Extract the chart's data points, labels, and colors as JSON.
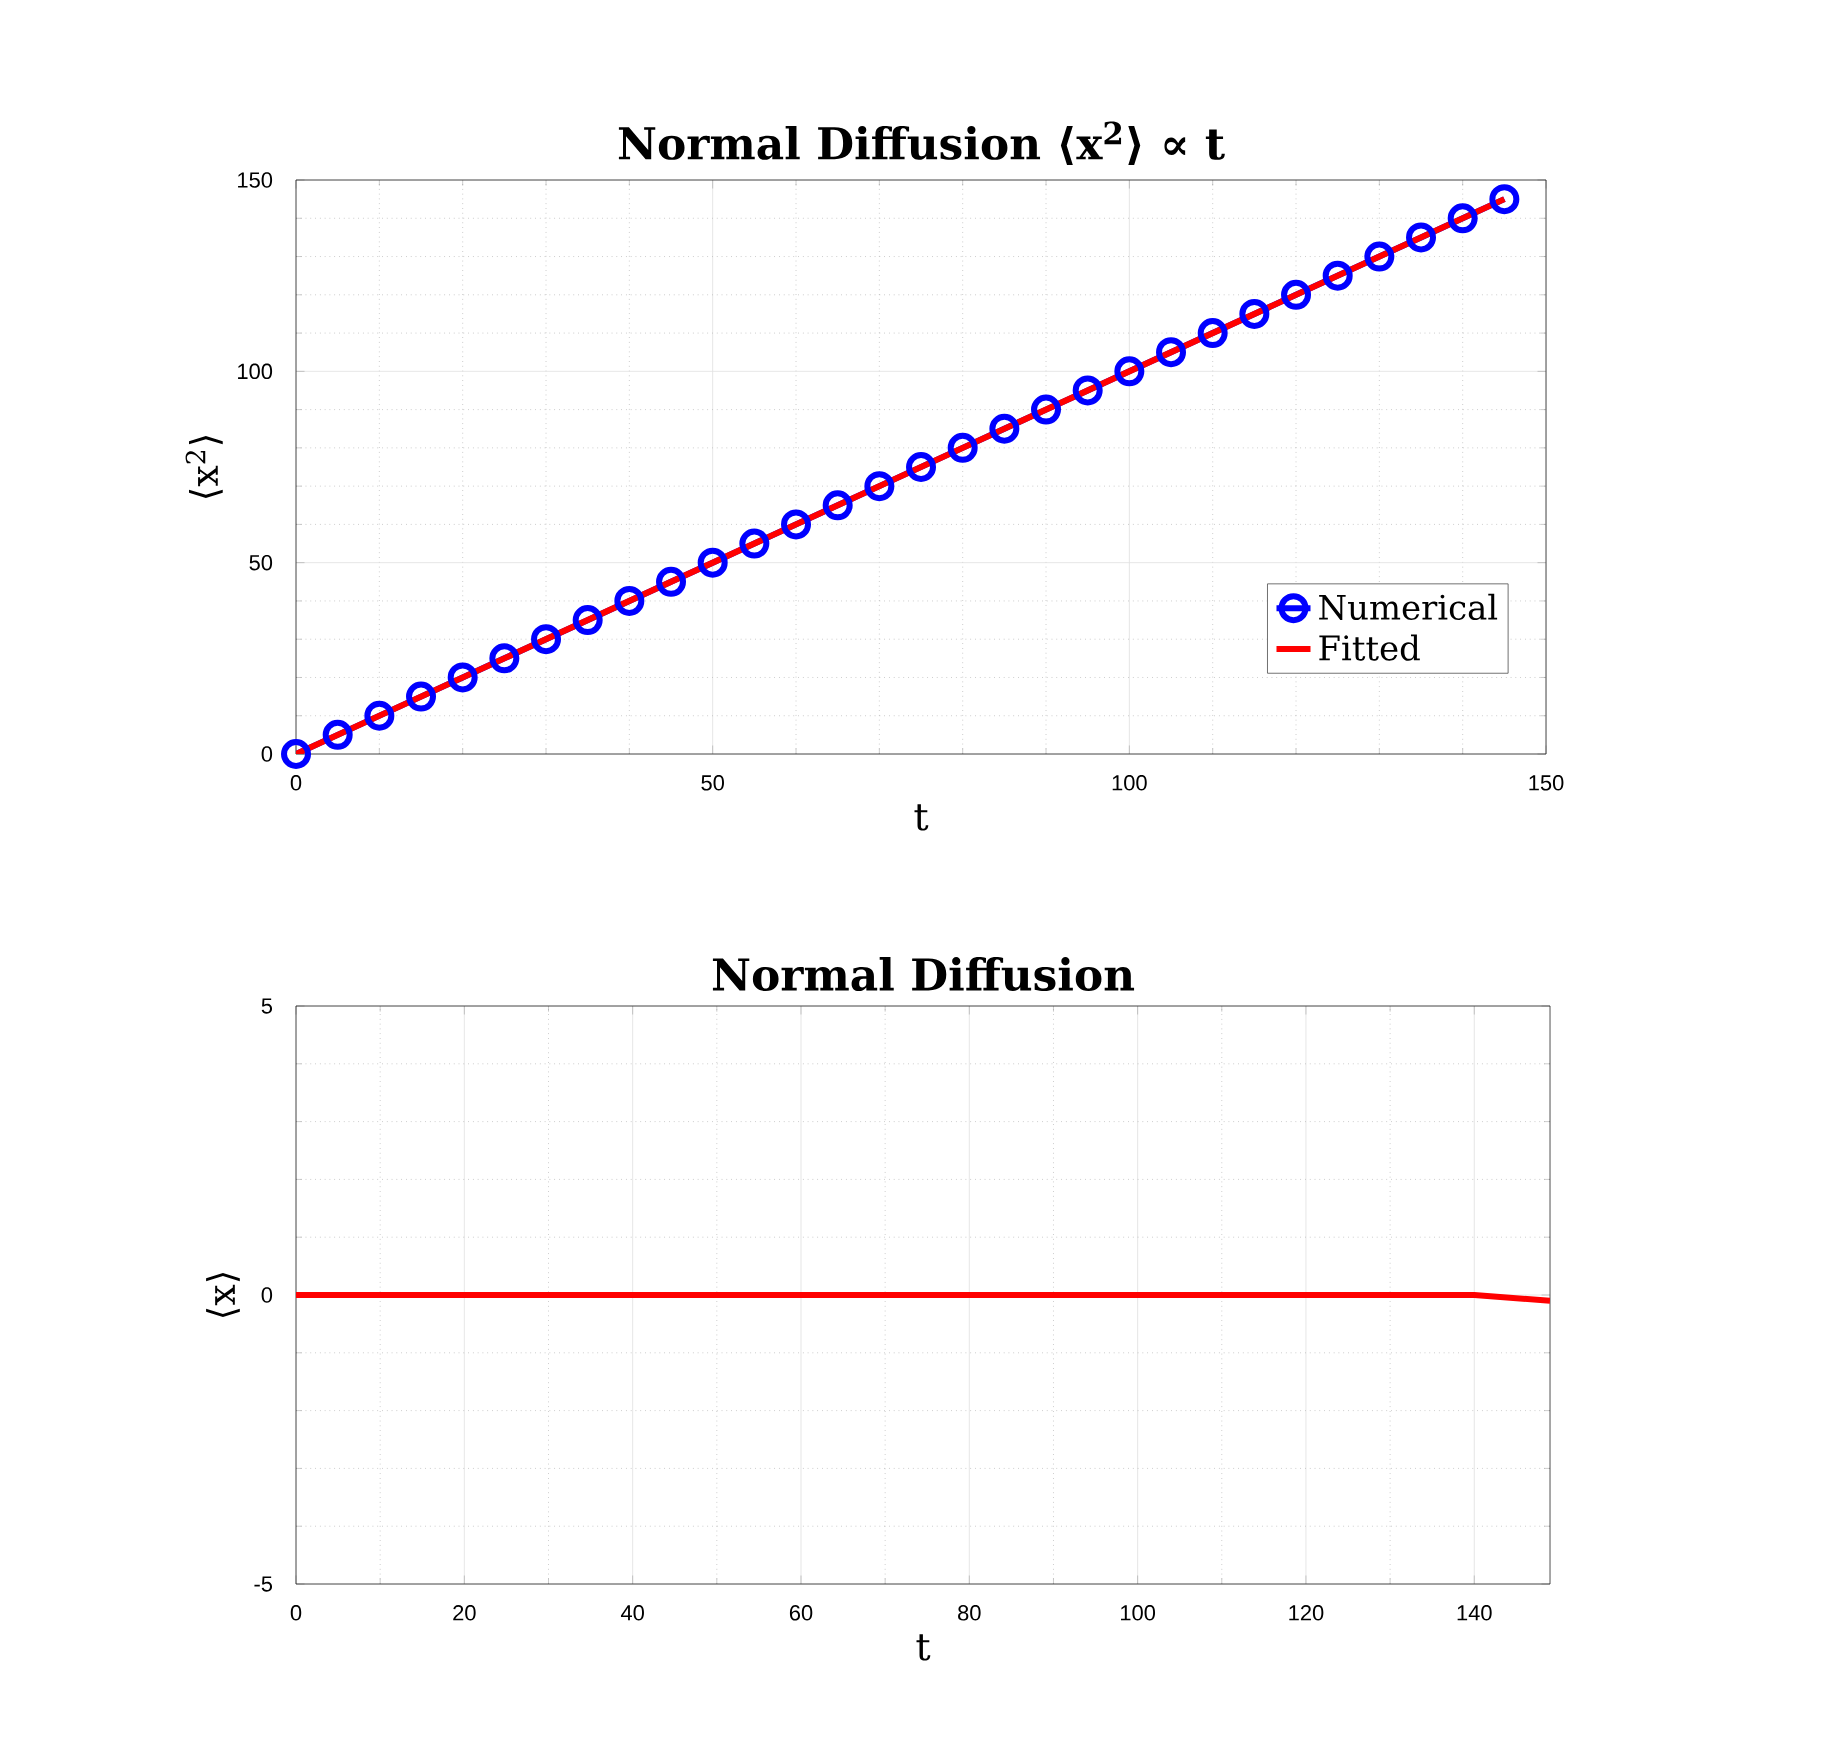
{
  "chart_data": [
    {
      "type": "line",
      "title": "Normal Diffusion **⟨x$^{2}$⟩ ∝ t**",
      "xlabel": "t",
      "ylabel": "⟨x$^{2}$⟩",
      "xlim": [
        0,
        150
      ],
      "ylim": [
        0,
        150
      ],
      "xticks": [
        0,
        50,
        100,
        150
      ],
      "yticks": [
        0,
        50,
        100,
        150
      ],
      "grid": true,
      "legend": "bottom right",
      "series": [
        {
          "name": "Numerical",
          "color": "#0000ff",
          "marker": "circle",
          "x": [
            0,
            5,
            10,
            15,
            20,
            25,
            30,
            35,
            40,
            45,
            50,
            55,
            60,
            65,
            70,
            75,
            80,
            85,
            90,
            95,
            100,
            105,
            110,
            115,
            120,
            125,
            130,
            135,
            140,
            145
          ],
          "values": [
            0,
            5,
            10,
            15,
            20,
            25,
            30,
            35,
            40,
            45,
            50,
            55,
            60,
            65,
            70,
            75,
            80,
            85,
            90,
            95,
            100,
            105,
            110,
            115,
            120,
            125,
            130,
            135,
            140,
            145
          ]
        },
        {
          "name": "Fitted",
          "color": "#ff0000",
          "marker": "none",
          "x": [
            0,
            145
          ],
          "values": [
            0,
            145
          ]
        }
      ]
    },
    {
      "type": "line",
      "title": "Normal Diffusion",
      "xlabel": "t",
      "ylabel": "⟨x⟩",
      "xlim": [
        0,
        149
      ],
      "ylim": [
        -5,
        5
      ],
      "xticks": [
        0,
        20,
        40,
        60,
        80,
        100,
        120,
        140
      ],
      "yticks": [
        -5,
        0,
        5
      ],
      "grid": true,
      "series": [
        {
          "color": "#ff0000",
          "marker": "none",
          "x": [
            0,
            20,
            40,
            60,
            80,
            100,
            120,
            140,
            149
          ],
          "values": [
            0,
            0,
            0,
            0,
            0,
            0,
            0,
            0,
            -0.1
          ]
        }
      ]
    }
  ]
}
